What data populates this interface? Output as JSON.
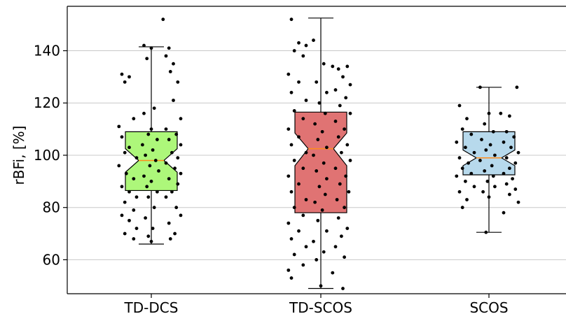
{
  "chart_data": {
    "type": "box",
    "ylabel": "rBFi, [%]",
    "xlabel": "",
    "title": "",
    "ylim": [
      47,
      157
    ],
    "yticks": [
      60,
      80,
      100,
      120,
      140
    ],
    "grid": "horizontal",
    "notched": true,
    "series": [
      {
        "category": "TD-DCS",
        "color": "#adf77a",
        "whisker_low": 66,
        "q1": 86.5,
        "median": 98,
        "q3": 109,
        "whisker_high": 141.5,
        "notch_low": 93.5,
        "notch_high": 102.5,
        "points": [
          [
            -0.2,
            131
          ],
          [
            -0.15,
            130
          ],
          [
            -0.18,
            128
          ],
          [
            -0.12,
            114
          ],
          [
            -0.22,
            111
          ],
          [
            -0.2,
            107
          ],
          [
            -0.15,
            103
          ],
          [
            -0.18,
            101
          ],
          [
            -0.1,
            99
          ],
          [
            -0.22,
            96
          ],
          [
            -0.17,
            93
          ],
          [
            -0.12,
            91
          ],
          [
            -0.2,
            88
          ],
          [
            -0.15,
            86
          ],
          [
            -0.1,
            84
          ],
          [
            -0.18,
            82
          ],
          [
            -0.12,
            79
          ],
          [
            -0.2,
            77
          ],
          [
            -0.15,
            75
          ],
          [
            -0.1,
            72
          ],
          [
            -0.18,
            70
          ],
          [
            -0.12,
            68
          ],
          [
            -0.05,
            142
          ],
          [
            0.0,
            141
          ],
          [
            -0.03,
            137
          ],
          [
            0.02,
            118
          ],
          [
            -0.05,
            116
          ],
          [
            0.0,
            110
          ],
          [
            -0.02,
            108
          ],
          [
            0.04,
            106
          ],
          [
            -0.06,
            104
          ],
          [
            0.01,
            102
          ],
          [
            -0.04,
            100
          ],
          [
            0.03,
            98
          ],
          [
            -0.01,
            96
          ],
          [
            0.05,
            94
          ],
          [
            -0.05,
            92
          ],
          [
            0.0,
            90
          ],
          [
            -0.03,
            88
          ],
          [
            0.04,
            86
          ],
          [
            -0.02,
            84
          ],
          [
            0.02,
            80
          ],
          [
            -0.04,
            76
          ],
          [
            0.01,
            72
          ],
          [
            -0.02,
            69
          ],
          [
            0.0,
            67
          ],
          [
            0.08,
            152
          ],
          [
            0.12,
            141
          ],
          [
            0.1,
            138
          ],
          [
            0.15,
            135
          ],
          [
            0.13,
            132
          ],
          [
            0.18,
            128
          ],
          [
            0.15,
            121
          ],
          [
            0.2,
            114
          ],
          [
            0.1,
            110
          ],
          [
            0.17,
            108
          ],
          [
            0.12,
            106
          ],
          [
            0.2,
            104
          ],
          [
            0.14,
            101
          ],
          [
            0.18,
            99
          ],
          [
            0.1,
            97
          ],
          [
            0.16,
            95
          ],
          [
            0.2,
            93
          ],
          [
            0.12,
            91
          ],
          [
            0.18,
            89
          ],
          [
            0.14,
            86
          ],
          [
            0.1,
            84
          ],
          [
            0.17,
            80
          ],
          [
            0.2,
            77
          ],
          [
            0.12,
            74
          ],
          [
            0.16,
            70
          ],
          [
            0.13,
            68
          ]
        ]
      },
      {
        "category": "TD-SCOS",
        "color": "#e07373",
        "whisker_low": 49,
        "q1": 78,
        "median": 102.5,
        "q3": 116.5,
        "whisker_high": 152.5,
        "notch_low": 96,
        "notch_high": 108.5,
        "points": [
          [
            -0.2,
            152
          ],
          [
            -0.15,
            143
          ],
          [
            -0.1,
            142
          ],
          [
            -0.18,
            140
          ],
          [
            -0.12,
            138
          ],
          [
            -0.22,
            131
          ],
          [
            -0.15,
            128
          ],
          [
            -0.2,
            124
          ],
          [
            -0.1,
            121
          ],
          [
            -0.18,
            117
          ],
          [
            -0.12,
            114
          ],
          [
            -0.22,
            110
          ],
          [
            -0.15,
            107
          ],
          [
            -0.2,
            104
          ],
          [
            -0.1,
            101
          ],
          [
            -0.18,
            98
          ],
          [
            -0.12,
            95
          ],
          [
            -0.22,
            92
          ],
          [
            -0.15,
            89
          ],
          [
            -0.2,
            86
          ],
          [
            -0.1,
            83
          ],
          [
            -0.18,
            80
          ],
          [
            -0.12,
            77
          ],
          [
            -0.22,
            74
          ],
          [
            -0.15,
            71
          ],
          [
            -0.2,
            68
          ],
          [
            -0.1,
            65
          ],
          [
            -0.18,
            62
          ],
          [
            -0.12,
            58
          ],
          [
            -0.22,
            56
          ],
          [
            -0.2,
            53
          ],
          [
            -0.05,
            144
          ],
          [
            0.02,
            135
          ],
          [
            -0.03,
            128
          ],
          [
            0.04,
            124
          ],
          [
            -0.01,
            120
          ],
          [
            0.03,
            116
          ],
          [
            -0.04,
            112
          ],
          [
            0.01,
            109
          ],
          [
            -0.02,
            106
          ],
          [
            0.04,
            103
          ],
          [
            -0.05,
            100
          ],
          [
            0.02,
            97
          ],
          [
            -0.03,
            94
          ],
          [
            0.04,
            91
          ],
          [
            -0.01,
            88
          ],
          [
            0.03,
            85
          ],
          [
            -0.04,
            82
          ],
          [
            0.01,
            79
          ],
          [
            -0.02,
            75
          ],
          [
            0.04,
            71
          ],
          [
            -0.05,
            67
          ],
          [
            0.02,
            63
          ],
          [
            -0.03,
            60
          ],
          [
            0.0,
            50
          ],
          [
            0.08,
            134
          ],
          [
            0.12,
            133
          ],
          [
            0.18,
            134
          ],
          [
            0.15,
            130
          ],
          [
            0.2,
            127
          ],
          [
            0.1,
            125
          ],
          [
            0.17,
            122
          ],
          [
            0.13,
            119
          ],
          [
            0.2,
            116
          ],
          [
            0.1,
            113
          ],
          [
            0.16,
            110
          ],
          [
            0.12,
            107
          ],
          [
            0.18,
            104
          ],
          [
            0.14,
            101
          ],
          [
            0.2,
            98
          ],
          [
            0.1,
            95
          ],
          [
            0.17,
            92
          ],
          [
            0.13,
            89
          ],
          [
            0.19,
            86
          ],
          [
            0.11,
            83
          ],
          [
            0.16,
            80
          ],
          [
            0.12,
            76
          ],
          [
            0.18,
            72
          ],
          [
            0.14,
            69
          ],
          [
            0.1,
            65
          ],
          [
            0.16,
            61
          ],
          [
            0.08,
            55
          ],
          [
            0.15,
            49
          ]
        ]
      },
      {
        "category": "SCOS",
        "color": "#b7d9ec",
        "whisker_low": 70.5,
        "q1": 92.5,
        "median": 99,
        "q3": 109,
        "whisker_high": 126,
        "notch_low": 96,
        "notch_high": 102,
        "points": [
          [
            -0.2,
            119
          ],
          [
            -0.15,
            114
          ],
          [
            -0.18,
            110
          ],
          [
            -0.12,
            108
          ],
          [
            -0.22,
            105
          ],
          [
            -0.16,
            103
          ],
          [
            -0.1,
            101
          ],
          [
            -0.2,
            99
          ],
          [
            -0.14,
            97
          ],
          [
            -0.18,
            95
          ],
          [
            -0.12,
            93
          ],
          [
            -0.22,
            92
          ],
          [
            -0.16,
            90
          ],
          [
            -0.1,
            88
          ],
          [
            -0.2,
            86
          ],
          [
            -0.15,
            83
          ],
          [
            -0.18,
            80
          ],
          [
            -0.06,
            126
          ],
          [
            0.0,
            116
          ],
          [
            -0.03,
            112
          ],
          [
            0.03,
            109
          ],
          [
            -0.05,
            106
          ],
          [
            0.01,
            104
          ],
          [
            -0.02,
            102
          ],
          [
            0.04,
            100
          ],
          [
            -0.06,
            98
          ],
          [
            0.02,
            96
          ],
          [
            -0.03,
            94
          ],
          [
            0.03,
            92
          ],
          [
            -0.01,
            90
          ],
          [
            0.04,
            88
          ],
          [
            -0.04,
            86
          ],
          [
            0.0,
            84
          ],
          [
            -0.02,
            70.5
          ],
          [
            0.08,
            116
          ],
          [
            0.14,
            115
          ],
          [
            0.19,
            126
          ],
          [
            0.12,
            109
          ],
          [
            0.17,
            107
          ],
          [
            0.1,
            105
          ],
          [
            0.15,
            103
          ],
          [
            0.2,
            101
          ],
          [
            0.12,
            99
          ],
          [
            0.18,
            97
          ],
          [
            0.14,
            95
          ],
          [
            0.1,
            93
          ],
          [
            0.16,
            91
          ],
          [
            0.12,
            89
          ],
          [
            0.18,
            87
          ],
          [
            0.14,
            85
          ],
          [
            0.2,
            82
          ],
          [
            0.1,
            78
          ]
        ]
      }
    ]
  }
}
